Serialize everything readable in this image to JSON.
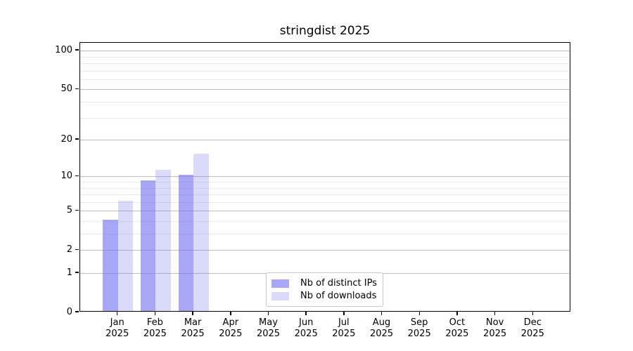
{
  "chart_data": {
    "type": "bar",
    "title": "stringdist 2025",
    "categories": [
      "Jan",
      "Feb",
      "Mar",
      "Apr",
      "May",
      "Jun",
      "Jul",
      "Aug",
      "Sep",
      "Oct",
      "Nov",
      "Dec"
    ],
    "category_year": "2025",
    "series": [
      {
        "name": "Nb of distinct IPs",
        "color": "rgba(120,120,240,0.65)",
        "values": [
          4,
          9,
          10,
          0,
          0,
          0,
          0,
          0,
          0,
          0,
          0,
          0
        ]
      },
      {
        "name": "Nb of downloads",
        "color": "rgba(120,120,240,0.27)",
        "values": [
          6,
          11,
          15,
          0,
          0,
          0,
          0,
          0,
          0,
          0,
          0,
          0
        ]
      }
    ],
    "y_axis": {
      "scale": "log10(1+x)",
      "major_ticks": [
        0,
        1,
        2,
        5,
        10,
        20,
        50,
        100
      ],
      "minor_gridlines": [
        3,
        4,
        6,
        7,
        8,
        9,
        30,
        40,
        60,
        70,
        80,
        90
      ],
      "range_top": 115
    },
    "xlabel": "",
    "ylabel": "",
    "grid": true,
    "legend_position": "lower center"
  },
  "colors": {
    "background": "#ffffff",
    "spine": "#000000",
    "grid_major": "#bdbdbd",
    "grid_minor": "#e9e9e9",
    "bar_distinct_ips": "rgba(120,120,240,0.65)",
    "bar_downloads": "rgba(120,120,240,0.27)"
  }
}
